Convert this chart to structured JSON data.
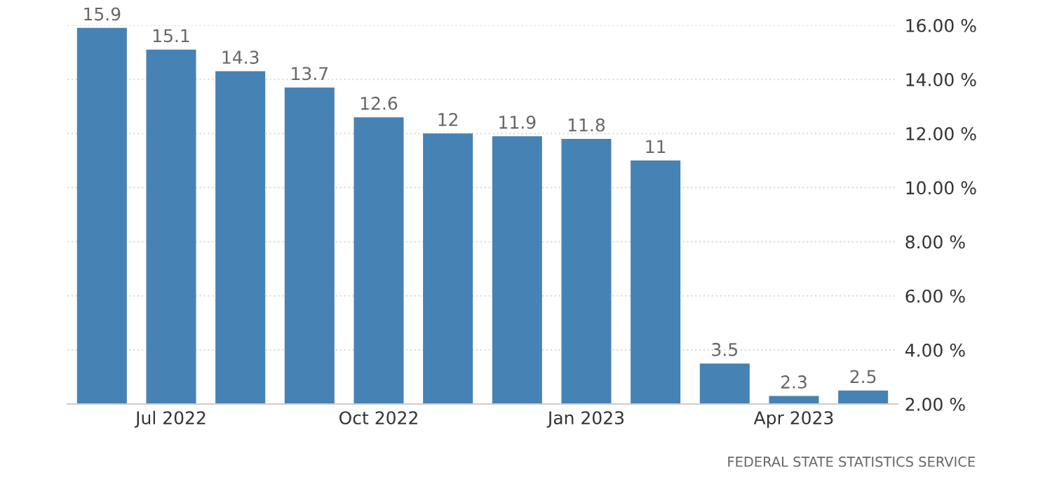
{
  "chart_data": {
    "type": "bar",
    "categories": [
      null,
      "Jul 2022",
      null,
      null,
      "Oct 2022",
      null,
      null,
      "Jan 2023",
      null,
      null,
      "Apr 2023",
      null
    ],
    "values": [
      15.9,
      15.1,
      14.3,
      13.7,
      12.6,
      12,
      11.9,
      11.8,
      11,
      3.5,
      2.3,
      2.5
    ],
    "color": "#4682b4",
    "ylim": [
      2,
      16
    ],
    "yticks": [
      {
        "value": 2,
        "label": "2.00 %"
      },
      {
        "value": 4,
        "label": "4.00 %"
      },
      {
        "value": 6,
        "label": "6.00 %"
      },
      {
        "value": 8,
        "label": "8.00 %"
      },
      {
        "value": 10,
        "label": "10.00 %"
      },
      {
        "value": 12,
        "label": "12.00 %"
      },
      {
        "value": 14,
        "label": "14.00 %"
      },
      {
        "value": 16,
        "label": "16.00 %"
      }
    ],
    "grid": "y",
    "data_labels": true,
    "annotations": [
      "FEDERAL STATE STATISTICS SERVICE"
    ]
  }
}
